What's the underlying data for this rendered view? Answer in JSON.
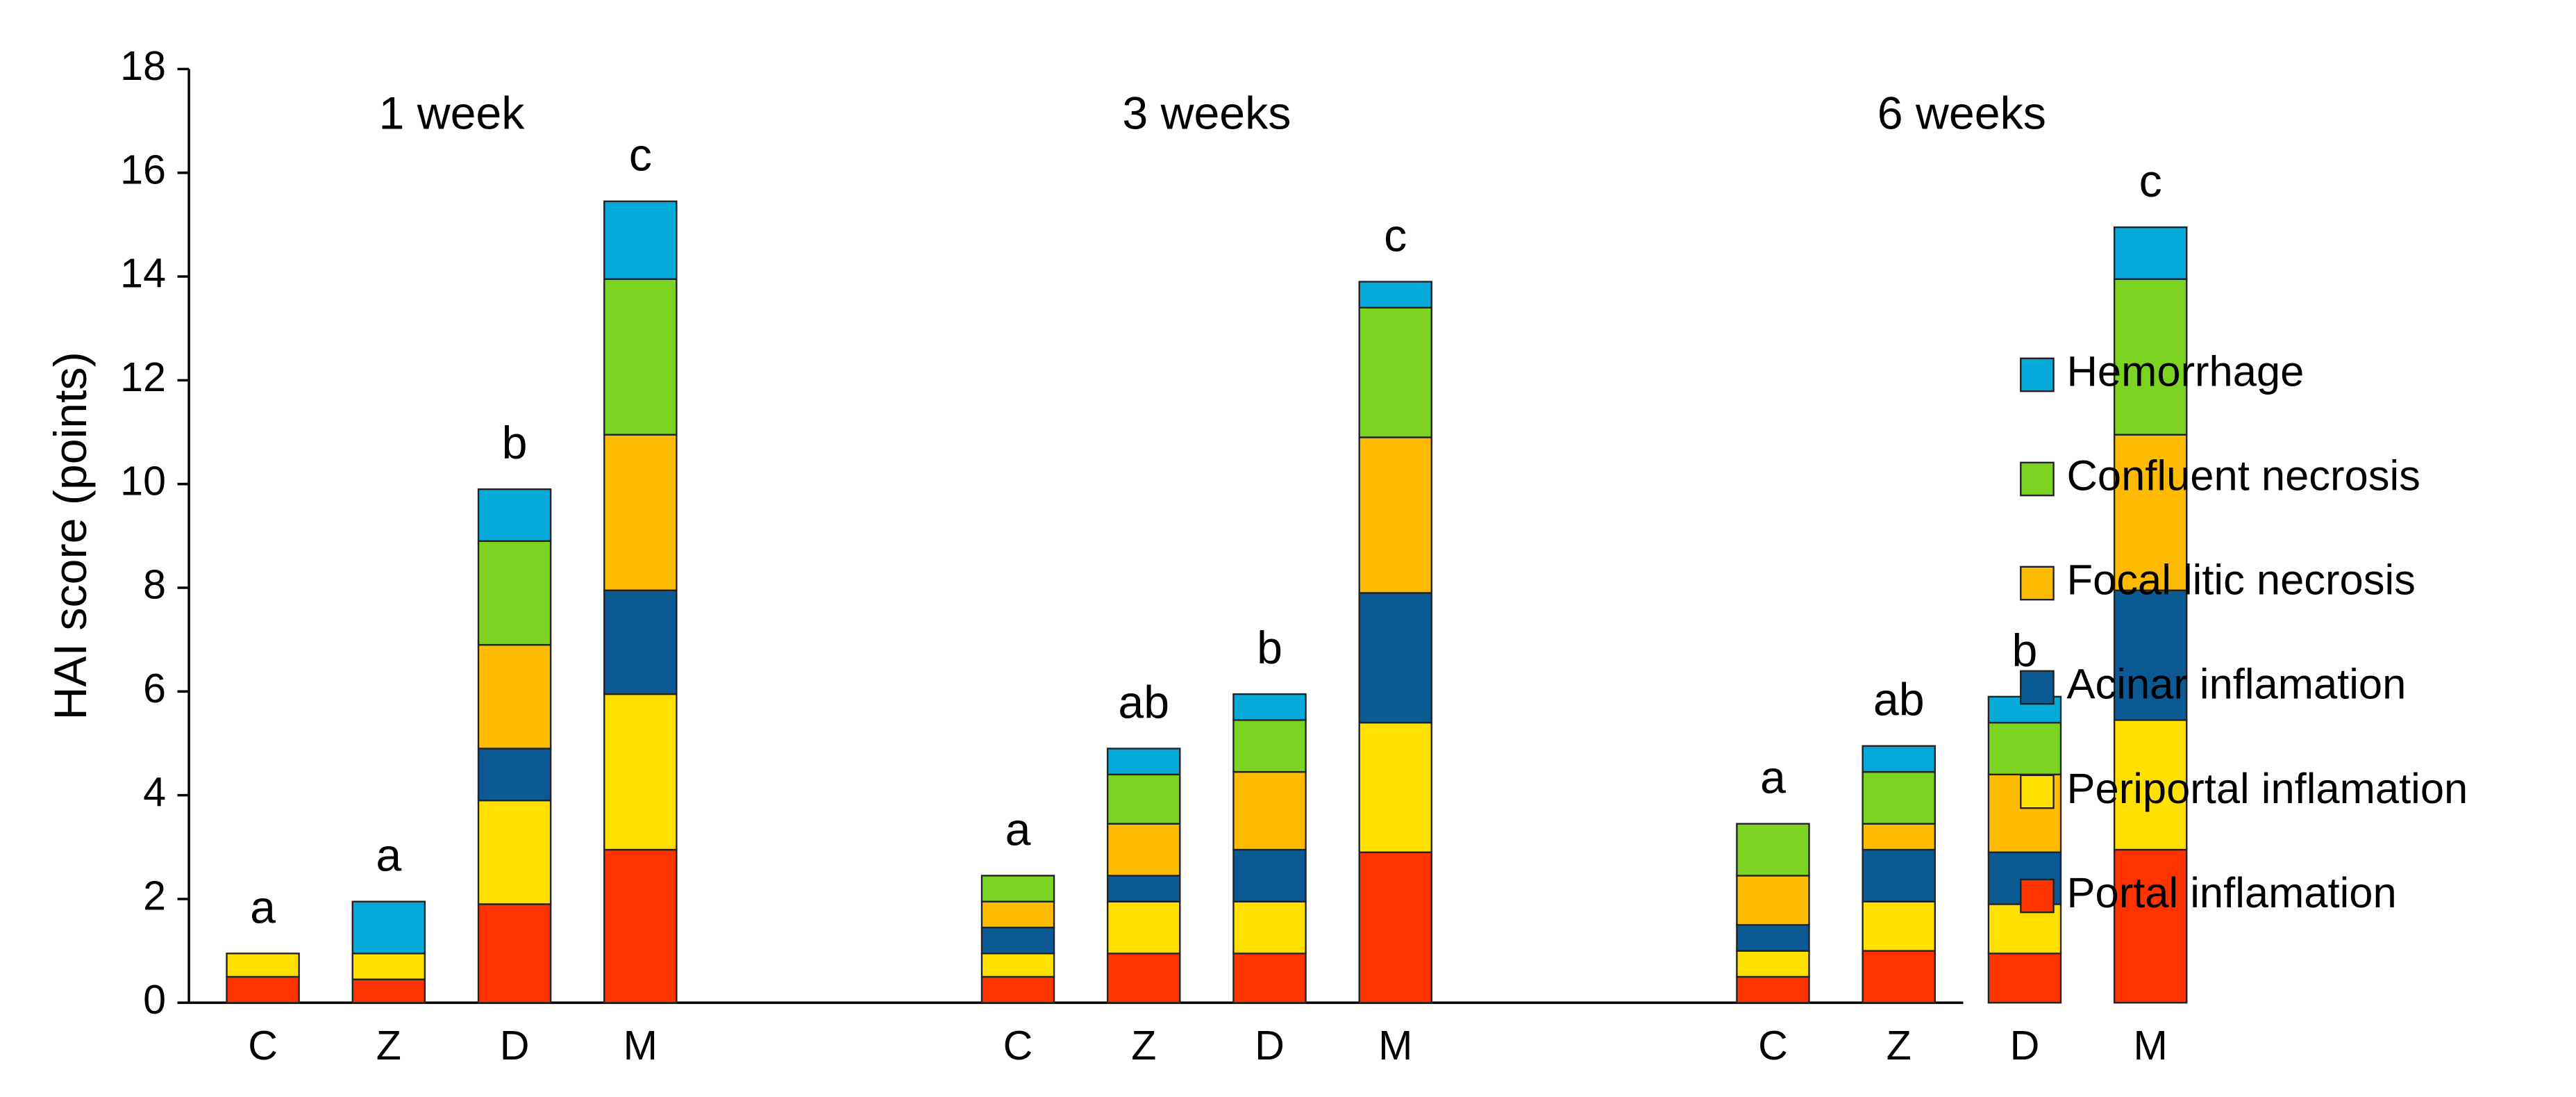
{
  "chart_data": {
    "type": "stacked-bar",
    "y_label": "HAI score (points)",
    "groups": [
      "1 week",
      "3 weeks",
      "6 weeks"
    ],
    "categories": [
      "C",
      "Z",
      "D",
      "M",
      "C",
      "Z",
      "D",
      "M",
      "C",
      "Z",
      "D",
      "M"
    ],
    "annotations": [
      "a",
      "a",
      "b",
      "c",
      "a",
      "ab",
      "b",
      "c",
      "a",
      "ab",
      "b",
      "c"
    ],
    "series": [
      {
        "name": "Portal inflamation",
        "color": "#ff3300",
        "values": [
          0.5,
          0.45,
          1.9,
          2.95,
          0.5,
          0.95,
          0.95,
          2.9,
          0.5,
          1.0,
          0.95,
          2.95
        ]
      },
      {
        "name": "Periportal inflamation",
        "color": "#ffe000",
        "values": [
          0.45,
          0.5,
          2.0,
          3.0,
          0.45,
          1.0,
          1.0,
          2.5,
          0.5,
          0.95,
          0.95,
          2.5
        ]
      },
      {
        "name": "Acinar inflamation",
        "color": "#0b5a94",
        "values": [
          0,
          0,
          1.0,
          2.0,
          0.5,
          0.5,
          1.0,
          2.5,
          0.5,
          1.0,
          1.0,
          2.5
        ]
      },
      {
        "name": "Focal litic necrosis",
        "color": "#ffbb00",
        "values": [
          0,
          0,
          2.0,
          3.0,
          0.5,
          1.0,
          1.5,
          3.0,
          0.95,
          0.5,
          1.5,
          3.0
        ]
      },
      {
        "name": "Confluent necrosis",
        "color": "#7dd321",
        "values": [
          0,
          0,
          2.0,
          3.0,
          0.5,
          0.95,
          1.0,
          2.5,
          1.0,
          1.0,
          1.0,
          3.0
        ]
      },
      {
        "name": "Hemorrhage",
        "color": "#05aadb",
        "values": [
          0,
          1.0,
          1.0,
          1.5,
          0,
          0.5,
          0.5,
          0.5,
          0,
          0.5,
          0.5,
          1.0
        ]
      }
    ],
    "ylim": [
      0,
      18
    ],
    "yticks": [
      0,
      2,
      4,
      6,
      8,
      10,
      12,
      14,
      16,
      18
    ]
  }
}
